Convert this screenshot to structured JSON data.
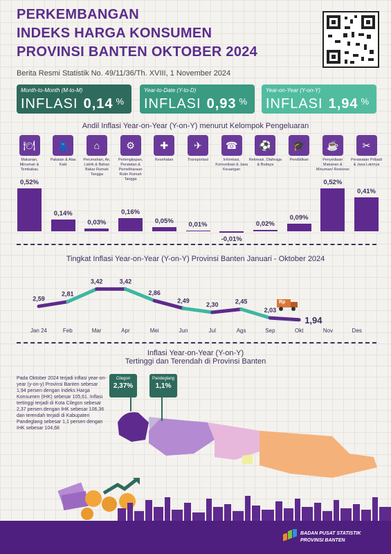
{
  "header": {
    "title_lines": [
      "PERKEMBANGAN",
      "INDEKS HARGA KONSUMEN",
      "PROVINSI BANTEN OKTOBER 2024"
    ],
    "subtitle": "Berita Resmi Statistik No. 49/11/36/Th. XVIII, 1 November 2024"
  },
  "inflation_boxes": [
    {
      "label": "Month-to-Month (M-to-M)",
      "word": "INFLASI",
      "value": "0,14",
      "unit": "%",
      "color": "#2e6b5c"
    },
    {
      "label": "Year-to-Date (Y-to-D)",
      "word": "INFLASI",
      "value": "0,93",
      "unit": "%",
      "color": "#3a9a82"
    },
    {
      "label": "Year-on-Year (Y-on-Y)",
      "word": "INFLASI",
      "value": "1,94",
      "unit": "%",
      "color": "#52bca0"
    }
  ],
  "section1_title": "Andil Inflasi Year-on-Year (Y-on-Y) menurut Kelompok Pengeluaran",
  "section2_title": "Tingkat Inflasi Year-on-Year (Y-on-Y) Provinsi Banten Januari - Oktober 2024",
  "section3_title_line1": "Inflasi Year-on-Year (Y-on-Y)",
  "section3_title_line2": "Tertinggi dan Terendah di Provinsi Banten",
  "chart_data": [
    {
      "type": "bar",
      "categories": [
        "Makanan, Minuman & Tembakau",
        "Pakaian & Alas Kaki",
        "Perumahan, Air, Listrik & Bahan Bakar Rumah Tangga",
        "Perlengkapan, Peralatan & Pemeliharaan Rutin Rumah Tangga",
        "Kesehatan",
        "Transportasi",
        "Informasi, Komunikasi & Jasa Keuangan",
        "Rekreasi, Olahraga & Budaya",
        "Pendidikan",
        "Penyediaan Makanan & Minuman/ Restoran",
        "Perawatan Pribadi & Jasa Lainnya"
      ],
      "values": [
        0.52,
        0.14,
        0.03,
        0.16,
        0.05,
        0.01,
        -0.01,
        0.02,
        0.09,
        0.52,
        0.41
      ],
      "labels": [
        "0,52%",
        "0,14%",
        "0,03%",
        "0,16%",
        "0,05%",
        "0,01%",
        "-0,01%",
        "0,02%",
        "0,09%",
        "0,52%",
        "0,41%"
      ],
      "icons": [
        "food-icon",
        "dress-icon",
        "house-icon",
        "appliance-icon",
        "medkit-icon",
        "plane-icon",
        "phone-icon",
        "sport-icon",
        "graduation-icon",
        "restaurant-icon",
        "tools-icon"
      ],
      "color": "#5e2a8e"
    },
    {
      "type": "line",
      "x": [
        "Jan 24",
        "Feb",
        "Mar",
        "Apr",
        "Mei",
        "Jun",
        "Jul",
        "Ags",
        "Sep",
        "Okt",
        "Nov",
        "Des"
      ],
      "values": [
        2.59,
        2.81,
        3.42,
        3.42,
        2.86,
        2.49,
        2.3,
        2.45,
        2.03,
        1.94
      ],
      "labels": [
        "2,59",
        "2,81",
        "3,42",
        "3,42",
        "2,86",
        "2,49",
        "2,30",
        "2,45",
        "2,03",
        "1,94"
      ],
      "color_a": "#5e2a8e",
      "color_b": "#3fb6a0"
    }
  ],
  "map": {
    "high_city": "Cilegon",
    "high_value": "2,37%",
    "low_city": "Pandeglang",
    "low_value": "1,1%"
  },
  "paragraph": "Pada Oktober 2024 terjadi inflasi year-on-year (y-on-y) Provinsi Banten sebesar 1,94 persen dengan Indeks Harga Konsumen (IHK) sebesar 105,61. Inflasi tertinggi terjadi di Kota Cilegon sebesar 2,37 persen dengan IHK sebesar 106,36 dan terendah terjadi di Kabupaten Pandeglang sebesar 1,1 persen dengan IHK sebesar 104,68",
  "footer": {
    "org_line1": "BADAN PUSAT STATISTIK",
    "org_line2": "PROVINSI BANTEN"
  },
  "truck_label": "Rp"
}
